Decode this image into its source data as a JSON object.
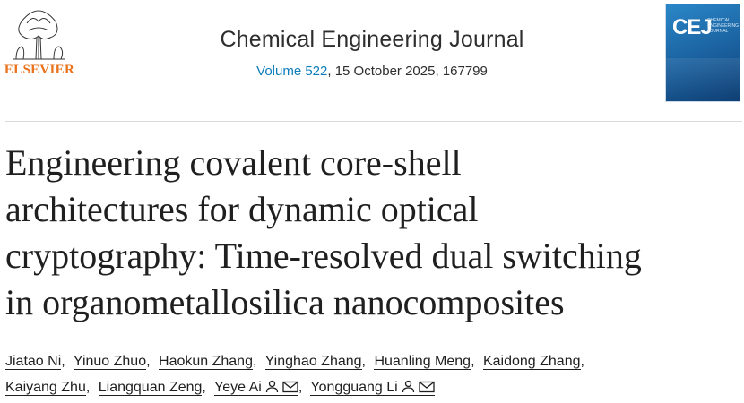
{
  "header": {
    "publisher_logo_text": "ELSEVIER",
    "journal_title": "Chemical Engineering Journal",
    "volume_link": "Volume 522",
    "issue_rest": ", 15 October 2025, 167799",
    "cover_logo": "CEJ",
    "cover_subtitle": "CHEMICAL ENGINEERING JOURNAL"
  },
  "article": {
    "title_lines": [
      "Engineering covalent core-shell",
      "architectures for dynamic optical",
      "cryptography: Time-resolved dual switching",
      "in organometallosilica nanocomposites"
    ]
  },
  "authors": [
    "Jiatao Ni",
    "Yinuo Zhuo",
    "Haokun Zhang",
    "Yinghao Zhang",
    "Huanling Meng",
    "Kaidong Zhang",
    "Kaiyang Zhu",
    "Liangquan Zeng",
    "Yeye Ai",
    "Yongguang Li"
  ],
  "separator": ",",
  "icons": {
    "person": "person-icon",
    "email": "email-icon"
  },
  "colors": {
    "link_blue": "#0c7dbb",
    "elsevier_orange": "#e9711c",
    "cover_blue": "#1a5f9d"
  }
}
